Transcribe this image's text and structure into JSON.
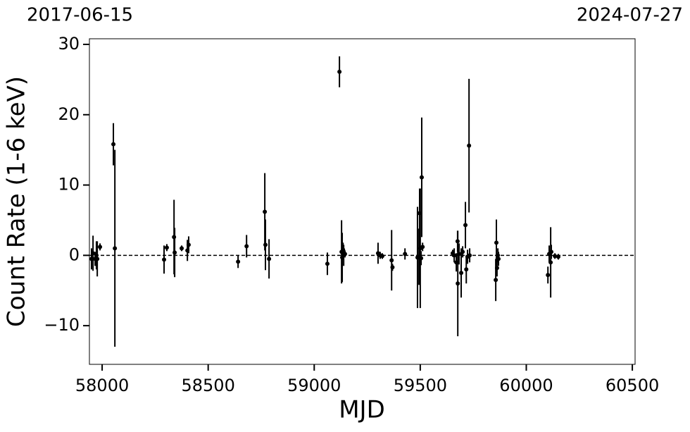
{
  "chart_data": {
    "type": "scatter",
    "ylabel": "Count Rate (1-6 keV)",
    "xlabel": "MJD",
    "annotations": [
      "2017-06-15",
      "2024-07-27"
    ],
    "color": "#000000",
    "hline": 0,
    "xlim": [
      57940,
      60513
    ],
    "ylim": [
      -15.5,
      30.8
    ],
    "xticks": [
      58000,
      58500,
      59000,
      59500,
      60000,
      60500
    ],
    "yticks": [
      {
        "value": -10,
        "label": "−10"
      },
      0,
      10,
      20,
      30
    ],
    "x": [
      57950,
      57957,
      57967,
      57973,
      57977,
      57990,
      58053,
      58060,
      58292,
      58305,
      58339,
      58342,
      58375,
      58402,
      58408,
      58641,
      58681,
      58767,
      58770,
      58787,
      59062,
      59119,
      59129,
      59132,
      59136,
      59139,
      59145,
      59301,
      59311,
      59321,
      59365,
      59369,
      59428,
      59487,
      59494,
      59497,
      59500,
      59504,
      59507,
      59511,
      59653,
      59660,
      59670,
      59676,
      59677,
      59683,
      59693,
      59700,
      59713,
      59717,
      59723,
      59730,
      59733,
      59856,
      59859,
      59862,
      59866,
      59869,
      60102,
      60108,
      60115,
      60118,
      60135,
      60151
    ],
    "values": [
      -0.5,
      0.3,
      -0.5,
      0,
      -0.5,
      1.2,
      15.8,
      1.0,
      -0.6,
      1.1,
      2.6,
      0.4,
      1.0,
      0.7,
      1.5,
      -0.9,
      1.3,
      6.2,
      1.5,
      -0.5,
      -1.2,
      26.1,
      0.5,
      -0.3,
      0.8,
      0,
      0.2,
      0.3,
      0,
      -0.1,
      -0.7,
      -1.7,
      0.2,
      -0.3,
      -0.2,
      6,
      1,
      -0.4,
      11.1,
      1.2,
      0.3,
      0,
      -1.0,
      2.0,
      -4.0,
      0.2,
      -2.5,
      0.5,
      4.3,
      -2.0,
      -0.2,
      15.6,
      0,
      -3.5,
      1.8,
      -1.8,
      0,
      -0.5,
      -2.8,
      0.2,
      -1,
      0.5,
      -0.1,
      -0.2
    ],
    "errors": [
      1.5,
      2.5,
      1,
      2,
      2.5,
      0.5,
      3,
      14,
      2,
      0.5,
      5.3,
      3.5,
      0.4,
      1.5,
      1.2,
      0.9,
      1.6,
      5.5,
      3.6,
      2.8,
      1.6,
      2.2,
      4.5,
      3.5,
      1,
      1.5,
      0.5,
      1.5,
      0.5,
      0.4,
      4.3,
      0.5,
      0.8,
      7.2,
      4,
      3.5,
      8.5,
      1,
      8.5,
      0.6,
      0.5,
      1,
      1.3,
      1.5,
      7.5,
      1.5,
      3.5,
      0.8,
      3.3,
      2,
      1,
      9.5,
      1,
      3,
      3.3,
      1.2,
      1,
      1,
      1.2,
      1.2,
      5,
      1,
      0.4,
      0.4
    ]
  }
}
